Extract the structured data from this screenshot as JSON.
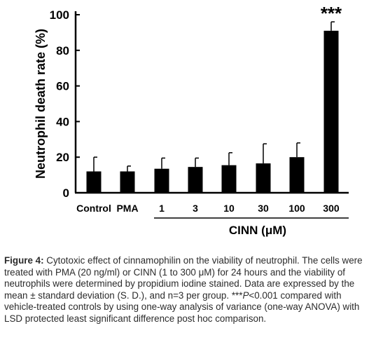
{
  "chart_data": {
    "type": "bar",
    "categories": [
      "Control",
      "PMA",
      "1",
      "3",
      "10",
      "30",
      "100",
      "300"
    ],
    "values": [
      12,
      12,
      13.5,
      14.5,
      15.5,
      16.5,
      20,
      91
    ],
    "errors": [
      8,
      3,
      6,
      5,
      7,
      11,
      8,
      5
    ],
    "ylabel": "Neutrophil death rate (%)",
    "ylim": [
      0,
      100
    ],
    "yticks": [
      0,
      20,
      40,
      60,
      80,
      100
    ],
    "group_label": "CINN (μM)",
    "significance": "***",
    "bar_color": "#000000",
    "grid": false,
    "legend": "none"
  },
  "caption": {
    "label": "Figure 4:",
    "text1": " Cytotoxic effect of cinnamophilin on the viability of neutrophil. The cells were treated with PMA (20 ng/ml) or CINN (1 to 300 μM) for 24 hours and the viability of neutrophils were determined by propidium iodine stained. Data are expressed by the mean ± standard deviation (S. D.), and n=3 per group. ***",
    "p_italic": "P",
    "text2": "<0.001 compared with vehicle-treated controls by using one-way analysis of variance (one-way ANOVA) with LSD protected least significant difference post hoc comparison."
  }
}
